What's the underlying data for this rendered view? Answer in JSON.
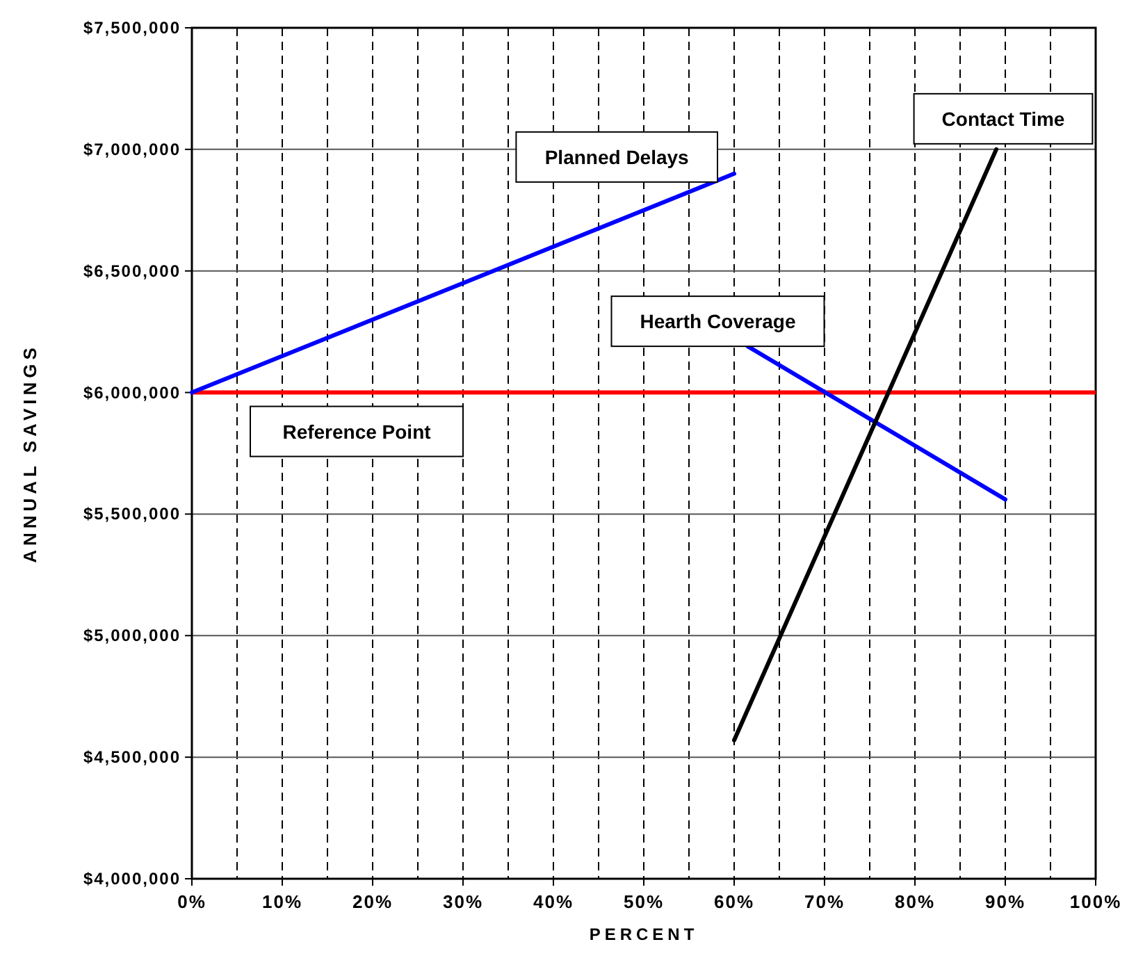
{
  "chart_data": {
    "type": "line",
    "xlabel": "PERCENT",
    "ylabel": "ANNUAL SAVINGS",
    "xlim": [
      0,
      100
    ],
    "ylim": [
      4000000,
      7500000
    ],
    "xticks": [
      {
        "value": 0,
        "label": "0%"
      },
      {
        "value": 5,
        "label": null
      },
      {
        "value": 10,
        "label": "10%"
      },
      {
        "value": 15,
        "label": null
      },
      {
        "value": 20,
        "label": "20%"
      },
      {
        "value": 25,
        "label": null
      },
      {
        "value": 30,
        "label": "30%"
      },
      {
        "value": 35,
        "label": null
      },
      {
        "value": 40,
        "label": "40%"
      },
      {
        "value": 45,
        "label": null
      },
      {
        "value": 50,
        "label": "50%"
      },
      {
        "value": 55,
        "label": null
      },
      {
        "value": 60,
        "label": "60%"
      },
      {
        "value": 65,
        "label": null
      },
      {
        "value": 70,
        "label": "70%"
      },
      {
        "value": 75,
        "label": null
      },
      {
        "value": 80,
        "label": "80%"
      },
      {
        "value": 85,
        "label": null
      },
      {
        "value": 90,
        "label": "90%"
      },
      {
        "value": 95,
        "label": null
      },
      {
        "value": 100,
        "label": "100%"
      }
    ],
    "yticks": [
      {
        "value": 4000000,
        "label": "$4,000,000"
      },
      {
        "value": 4500000,
        "label": "$4,500,000"
      },
      {
        "value": 5000000,
        "label": "$5,000,000"
      },
      {
        "value": 5500000,
        "label": "$5,500,000"
      },
      {
        "value": 6000000,
        "label": "$6,000,000"
      },
      {
        "value": 6500000,
        "label": "$6,500,000"
      },
      {
        "value": 7000000,
        "label": "$7,000,000"
      },
      {
        "value": 7500000,
        "label": "$7,500,000"
      }
    ],
    "grid": true,
    "legend": false,
    "marker": "none",
    "line_style": "solid",
    "series": [
      {
        "name": "Planned Delays",
        "color": "#0000ff",
        "x": [
          0,
          60
        ],
        "values": [
          6000000,
          6900000
        ]
      },
      {
        "name": "Hearth Coverage",
        "color": "#0000ff",
        "x": [
          61.5,
          90
        ],
        "values": [
          6190000,
          5560000
        ]
      },
      {
        "name": "Contact Time",
        "color": "#000000",
        "x": [
          60,
          89
        ],
        "values": [
          4570000,
          7000000
        ]
      }
    ],
    "ref_lines": [
      {
        "axis": "y",
        "value": 6000000,
        "label": "Reference Point",
        "color": "#ff0000"
      }
    ]
  }
}
